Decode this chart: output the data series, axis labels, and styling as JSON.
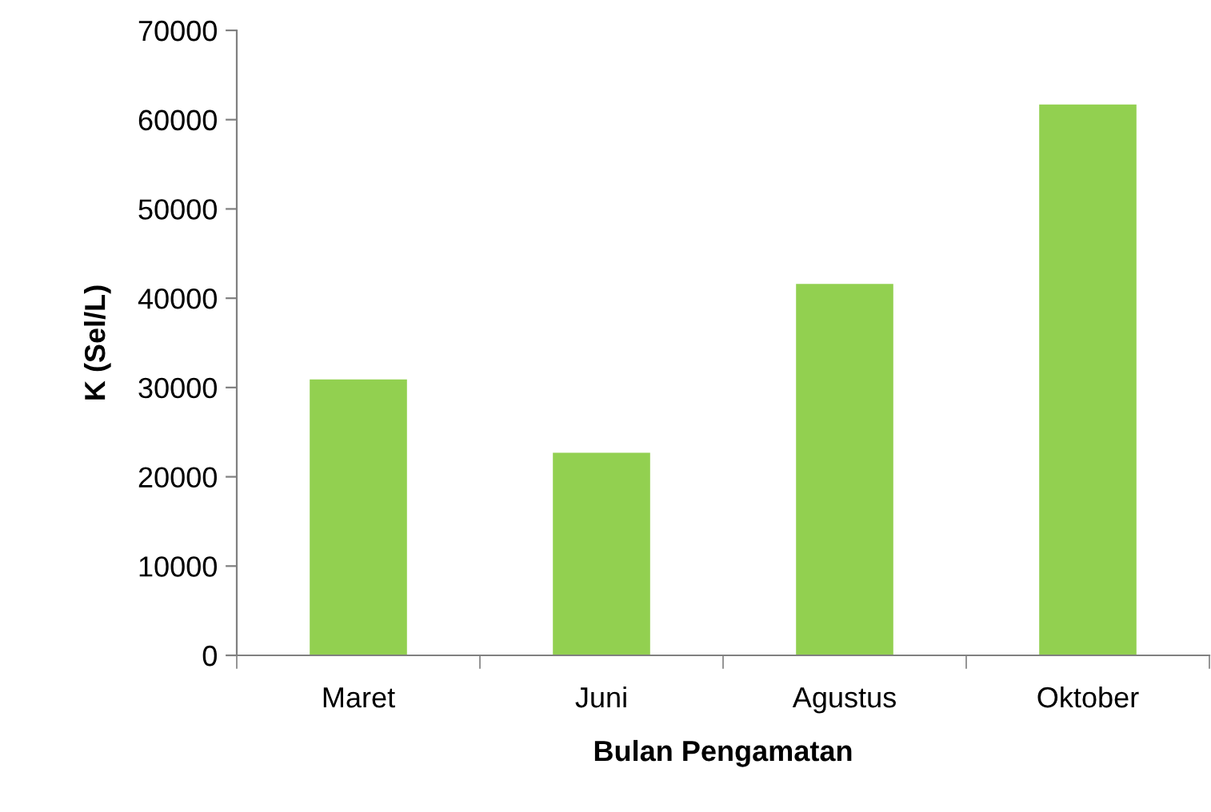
{
  "chart_data": {
    "type": "bar",
    "xlabel": "Bulan Pengamatan",
    "ylabel": "K (Sel/L)",
    "categories": [
      "Maret",
      "Juni",
      "Agustus",
      "Oktober"
    ],
    "values": [
      30900,
      22700,
      41600,
      61700
    ],
    "color": "#92d050",
    "ylim": [
      0,
      70000
    ],
    "yticks": [
      0,
      10000,
      20000,
      30000,
      40000,
      50000,
      60000,
      70000
    ],
    "grid": false,
    "legend": false
  }
}
